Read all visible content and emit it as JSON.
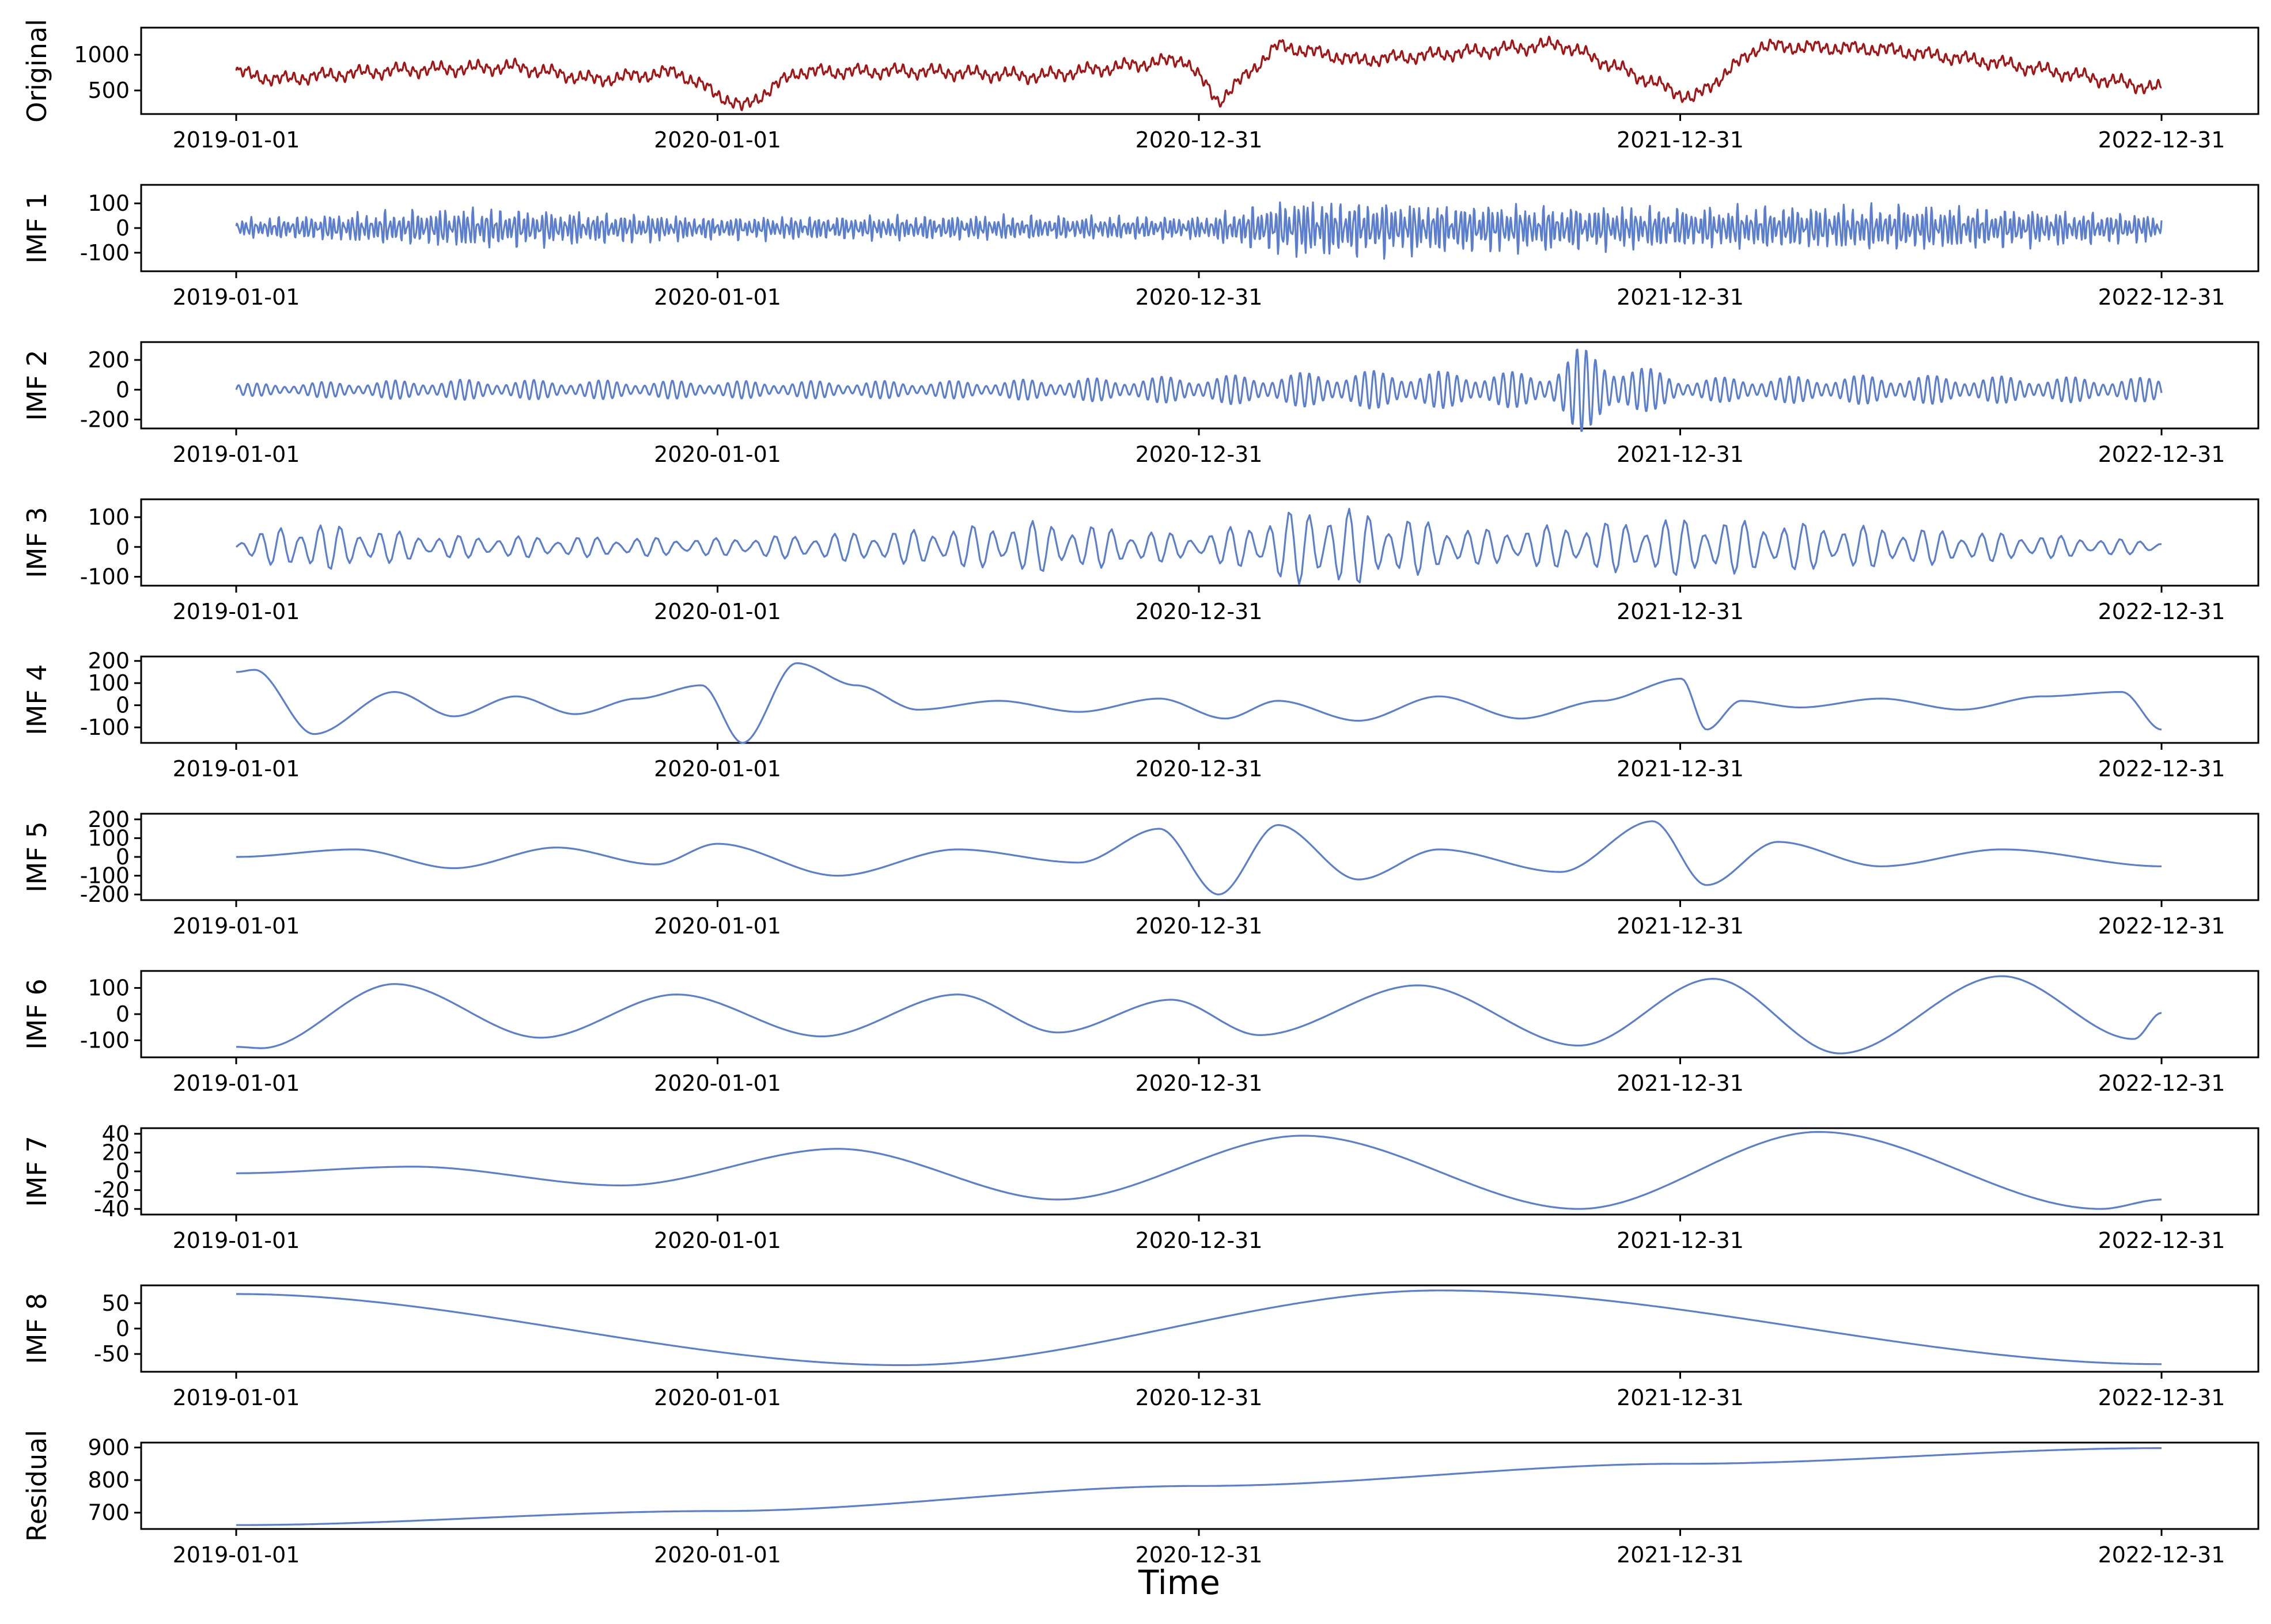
{
  "figure": {
    "xlabel": "Time"
  },
  "chart_data": [
    {
      "type": "line",
      "panel_label": "Original",
      "color": "#a31515",
      "pattern": "original",
      "yticks": [
        500,
        1000
      ],
      "ylim": [
        170,
        1380
      ],
      "x_ticks": [
        "2019-01-01",
        "2020-01-01",
        "2020-12-31",
        "2021-12-31",
        "2022-12-31"
      ],
      "x_range": [
        "2019-01-01",
        "2022-12-31"
      ],
      "series": [
        {
          "x": [
            "2019-01-01",
            "2019-02-01",
            "2019-03-15",
            "2019-05-01",
            "2019-08-01",
            "2019-10-01",
            "2019-12-01",
            "2020-01-20",
            "2020-03-01",
            "2020-06-01",
            "2020-09-01",
            "2020-12-20",
            "2021-01-15",
            "2021-03-01",
            "2021-05-01",
            "2021-08-01",
            "2021-10-01",
            "2022-01-10",
            "2022-03-01",
            "2022-06-01",
            "2022-09-01",
            "2022-12-31"
          ],
          "values": [
            760,
            650,
            720,
            780,
            830,
            650,
            760,
            260,
            760,
            770,
            700,
            940,
            350,
            1130,
            920,
            1050,
            1150,
            380,
            1120,
            1080,
            880,
            520
          ]
        }
      ]
    },
    {
      "type": "line",
      "panel_label": "IMF 1",
      "color": "#5b7fce",
      "pattern": "imf1",
      "yticks": [
        -100,
        0,
        100
      ],
      "ylim": [
        -175,
        175
      ],
      "x_ticks": [
        "2019-01-01",
        "2020-01-01",
        "2020-12-31",
        "2021-12-31",
        "2022-12-31"
      ],
      "x_range": [
        "2019-01-01",
        "2022-12-31"
      ],
      "series": [
        {
          "envelope_x": [
            "2019-01-01",
            "2019-07-01",
            "2020-01-01",
            "2020-07-01",
            "2021-01-01",
            "2021-03-15",
            "2021-07-01",
            "2022-01-01",
            "2022-07-01",
            "2022-12-31"
          ],
          "amplitude": [
            40,
            90,
            50,
            55,
            50,
            130,
            110,
            90,
            100,
            60
          ]
        }
      ]
    },
    {
      "type": "line",
      "panel_label": "IMF 2",
      "color": "#5b7fce",
      "pattern": "imf2",
      "yticks": [
        -200,
        0,
        200
      ],
      "ylim": [
        -260,
        320
      ],
      "x_ticks": [
        "2019-01-01",
        "2020-01-01",
        "2020-12-31",
        "2021-12-31",
        "2022-12-31"
      ],
      "x_range": [
        "2019-01-01",
        "2022-12-31"
      ],
      "series": [
        {
          "envelope_x": [
            "2019-01-01",
            "2019-06-01",
            "2020-01-01",
            "2020-07-01",
            "2021-02-01",
            "2021-05-01",
            "2021-09-20",
            "2021-10-15",
            "2022-01-01",
            "2022-06-01",
            "2022-12-31"
          ],
          "amplitude": [
            40,
            70,
            60,
            60,
            100,
            130,
            120,
            290,
            80,
            100,
            80
          ]
        }
      ]
    },
    {
      "type": "line",
      "panel_label": "IMF 3",
      "color": "#5b7fce",
      "pattern": "imf3",
      "yticks": [
        -100,
        0,
        100
      ],
      "ylim": [
        -130,
        160
      ],
      "x_ticks": [
        "2019-01-01",
        "2020-01-01",
        "2020-12-31",
        "2021-12-31",
        "2022-12-31"
      ],
      "x_range": [
        "2019-01-01",
        "2022-12-31"
      ],
      "series": [
        {
          "envelope_x": [
            "2019-01-01",
            "2019-02-15",
            "2019-06-01",
            "2020-01-01",
            "2020-06-01",
            "2020-09-01",
            "2021-01-01",
            "2021-04-01",
            "2021-08-01",
            "2022-01-01",
            "2022-06-01",
            "2022-12-31"
          ],
          "amplitude": [
            20,
            90,
            40,
            30,
            60,
            90,
            40,
            150,
            60,
            100,
            70,
            20
          ]
        }
      ]
    },
    {
      "type": "line",
      "panel_label": "IMF 4",
      "color": "#5b7fce",
      "pattern": "custom",
      "yticks": [
        -100,
        0,
        100,
        200
      ],
      "ylim": [
        -170,
        220
      ],
      "x_ticks": [
        "2019-01-01",
        "2020-01-01",
        "2020-12-31",
        "2021-12-31",
        "2022-12-31"
      ],
      "x_range": [
        "2019-01-01",
        "2022-12-31"
      ],
      "series": [
        {
          "x": [
            "2019-01-01",
            "2019-01-15",
            "2019-03-01",
            "2019-05-01",
            "2019-06-15",
            "2019-08-01",
            "2019-09-15",
            "2019-11-01",
            "2019-12-20",
            "2020-01-20",
            "2020-03-01",
            "2020-04-15",
            "2020-06-01",
            "2020-08-01",
            "2020-10-01",
            "2020-12-01",
            "2021-01-20",
            "2021-03-01",
            "2021-05-01",
            "2021-07-01",
            "2021-09-01",
            "2021-11-01",
            "2022-01-01",
            "2022-01-20",
            "2022-02-15",
            "2022-04-01",
            "2022-06-01",
            "2022-08-01",
            "2022-10-01",
            "2022-12-01",
            "2022-12-31"
          ],
          "values": [
            150,
            160,
            -130,
            60,
            -50,
            40,
            -40,
            30,
            90,
            -170,
            190,
            90,
            -20,
            20,
            -30,
            30,
            -60,
            20,
            -70,
            40,
            -60,
            20,
            120,
            -110,
            20,
            -10,
            30,
            -20,
            40,
            60,
            -110
          ]
        }
      ]
    },
    {
      "type": "line",
      "panel_label": "IMF 5",
      "color": "#5b7fce",
      "pattern": "custom",
      "yticks": [
        -200,
        -100,
        0,
        100,
        200
      ],
      "ylim": [
        -230,
        230
      ],
      "x_ticks": [
        "2019-01-01",
        "2020-01-01",
        "2020-12-31",
        "2021-12-31",
        "2022-12-31"
      ],
      "x_range": [
        "2019-01-01",
        "2022-12-31"
      ],
      "series": [
        {
          "x": [
            "2019-01-01",
            "2019-04-01",
            "2019-06-15",
            "2019-09-01",
            "2019-11-15",
            "2020-01-01",
            "2020-04-01",
            "2020-07-01",
            "2020-10-01",
            "2020-12-01",
            "2021-01-15",
            "2021-03-01",
            "2021-05-01",
            "2021-07-01",
            "2021-10-01",
            "2021-12-10",
            "2022-01-20",
            "2022-03-15",
            "2022-06-01",
            "2022-09-01",
            "2022-12-31"
          ],
          "values": [
            0,
            40,
            -60,
            50,
            -40,
            70,
            -100,
            40,
            -30,
            150,
            -200,
            170,
            -120,
            40,
            -80,
            190,
            -150,
            80,
            -50,
            40,
            -50
          ]
        }
      ]
    },
    {
      "type": "line",
      "panel_label": "IMF 6",
      "color": "#5b7fce",
      "pattern": "custom",
      "yticks": [
        -100,
        0,
        100
      ],
      "ylim": [
        -165,
        165
      ],
      "x_ticks": [
        "2019-01-01",
        "2020-01-01",
        "2020-12-31",
        "2021-12-31",
        "2022-12-31"
      ],
      "x_range": [
        "2019-01-01",
        "2022-12-31"
      ],
      "series": [
        {
          "x": [
            "2019-01-01",
            "2019-01-20",
            "2019-05-01",
            "2019-08-20",
            "2019-12-01",
            "2020-03-20",
            "2020-07-01",
            "2020-09-15",
            "2020-12-10",
            "2021-02-15",
            "2021-06-15",
            "2021-10-15",
            "2022-01-25",
            "2022-05-01",
            "2022-09-01",
            "2022-12-10",
            "2022-12-31"
          ],
          "values": [
            -125,
            -130,
            115,
            -90,
            75,
            -85,
            75,
            -70,
            55,
            -80,
            110,
            -120,
            135,
            -150,
            145,
            -95,
            5
          ]
        }
      ]
    },
    {
      "type": "line",
      "panel_label": "IMF 7",
      "color": "#5b7fce",
      "pattern": "custom",
      "yticks": [
        -40,
        -20,
        0,
        20,
        40
      ],
      "ylim": [
        -46,
        46
      ],
      "x_ticks": [
        "2019-01-01",
        "2020-01-01",
        "2020-12-31",
        "2021-12-31",
        "2022-12-31"
      ],
      "x_range": [
        "2019-01-01",
        "2022-12-31"
      ],
      "series": [
        {
          "x": [
            "2019-01-01",
            "2019-05-15",
            "2019-10-20",
            "2020-04-01",
            "2020-09-15",
            "2021-03-20",
            "2021-10-15",
            "2022-04-15",
            "2022-11-15",
            "2022-12-31"
          ],
          "values": [
            -2,
            5,
            -15,
            24,
            -30,
            38,
            -40,
            42,
            -40,
            -30
          ]
        }
      ]
    },
    {
      "type": "line",
      "panel_label": "IMF 8",
      "color": "#5b7fce",
      "pattern": "custom",
      "yticks": [
        -50,
        0,
        50
      ],
      "ylim": [
        -85,
        85
      ],
      "x_ticks": [
        "2019-01-01",
        "2020-01-01",
        "2020-12-31",
        "2021-12-31",
        "2022-12-31"
      ],
      "x_range": [
        "2019-01-01",
        "2022-12-31"
      ],
      "series": [
        {
          "x": [
            "2019-01-01",
            "2020-05-20",
            "2021-07-01",
            "2022-12-31"
          ],
          "values": [
            68,
            -72,
            75,
            -70
          ]
        }
      ]
    },
    {
      "type": "line",
      "panel_label": "Residual",
      "color": "#5b7fce",
      "pattern": "custom",
      "yticks": [
        700,
        800,
        900
      ],
      "ylim": [
        650,
        915
      ],
      "x_ticks": [
        "2019-01-01",
        "2020-01-01",
        "2020-12-31",
        "2021-12-31",
        "2022-12-31"
      ],
      "x_range": [
        "2019-01-01",
        "2022-12-31"
      ],
      "series": [
        {
          "x": [
            "2019-01-01",
            "2020-01-01",
            "2020-12-31",
            "2021-12-31",
            "2022-12-31"
          ],
          "values": [
            662,
            705,
            782,
            850,
            898
          ]
        }
      ]
    }
  ]
}
